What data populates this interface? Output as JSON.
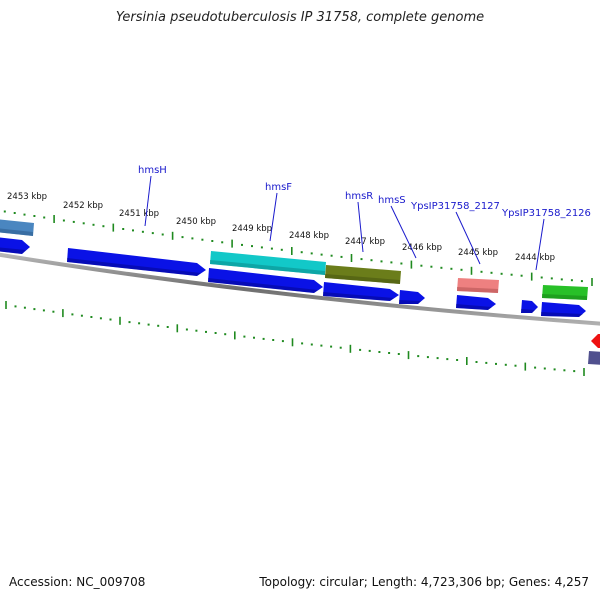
{
  "title": "Yersinia pseudotuberculosis IP 31758, complete genome",
  "footer": {
    "accession": "Accession: NC_009708",
    "summary": "Topology: circular; Length: 4,723,306 bp; Genes: 4,257"
  },
  "colors": {
    "forward_gene": "#0a12e6",
    "tick": "#1f8a1f",
    "backbone": "#7d7d7d",
    "label_line": "#1a1acc",
    "label_text": "#1a1acc"
  },
  "kbp_ticks": [
    {
      "label": "2453 kbp",
      "kbp": 2453
    },
    {
      "label": "2452 kbp",
      "kbp": 2452
    },
    {
      "label": "2451 kbp",
      "kbp": 2451
    },
    {
      "label": "2450 kbp",
      "kbp": 2450
    },
    {
      "label": "2449 kbp",
      "kbp": 2449
    },
    {
      "label": "2448 kbp",
      "kbp": 2448
    },
    {
      "label": "2447 kbp",
      "kbp": 2447
    },
    {
      "label": "2446 kbp",
      "kbp": 2446
    },
    {
      "label": "2445 kbp",
      "kbp": 2445
    },
    {
      "label": "2444 kbp",
      "kbp": 2444
    }
  ],
  "gene_labels": [
    {
      "name": "hmsH"
    },
    {
      "name": "hmsF"
    },
    {
      "name": "hmsR"
    },
    {
      "name": "hmsS"
    },
    {
      "name": "YpsIP31758_2127"
    },
    {
      "name": "YpsIP31758_2126"
    }
  ],
  "feature_colors": {
    "steelblue": "#4a86c0",
    "cyan": "#12c8c8",
    "olive": "#6b7d1a",
    "salmon": "#ee8080",
    "green": "#28c028",
    "red": "#ee1111",
    "slate": "#50508e"
  }
}
